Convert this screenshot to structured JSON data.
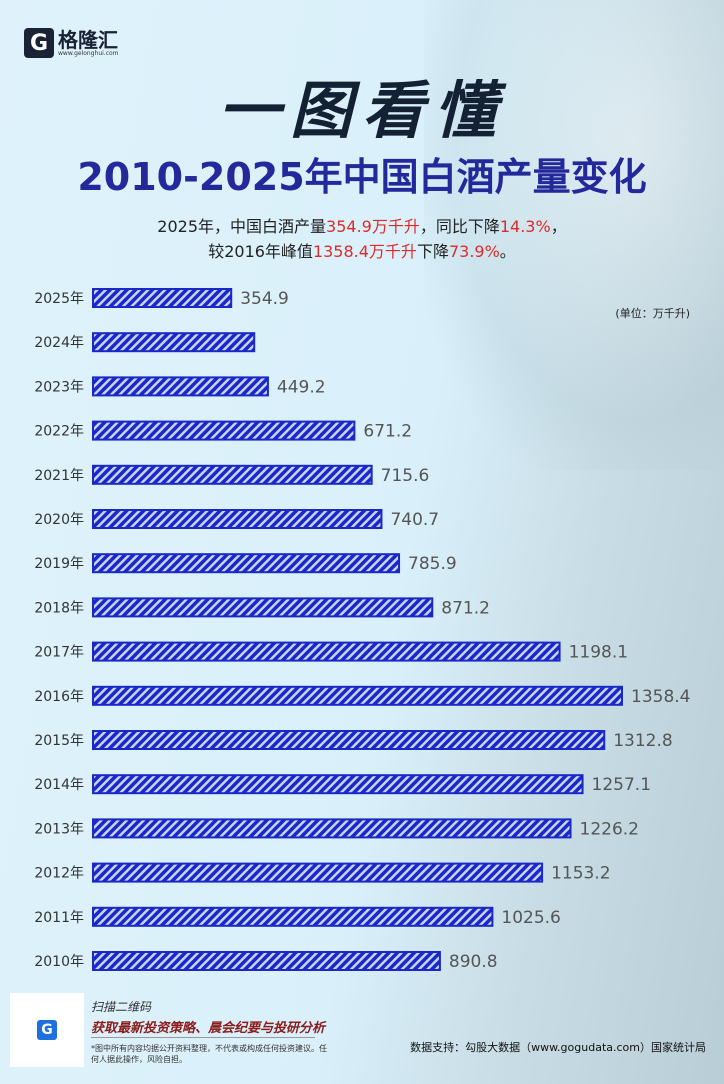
{
  "logo": {
    "name": "格隆汇",
    "url": "www.gelonghui.com"
  },
  "header": {
    "big_title": "一图看懂",
    "title": "2010-2025年中国白酒产量变化",
    "line1": [
      "2025年，中国白酒产量",
      "354.9万千升",
      "，同比下降",
      "14.3%",
      "，"
    ],
    "line2": [
      "较2016年峰值",
      "1358.4万千升",
      "下降",
      "73.9%",
      "。"
    ]
  },
  "colors": {
    "bar_fill": "#1a28c8",
    "bar_stripe": "#ffffff",
    "highlight": "#e02a2a",
    "title": "#23289a"
  },
  "chart_data": {
    "type": "bar",
    "orientation": "horizontal",
    "unit": "(单位：万千升)",
    "categories": [
      "2025年",
      "2024年",
      "2023年",
      "2022年",
      "2021年",
      "2020年",
      "2019年",
      "2018年",
      "2017年",
      "2016年",
      "2015年",
      "2014年",
      "2013年",
      "2012年",
      "2011年",
      "2010年"
    ],
    "values": [
      354.9,
      414,
      449.2,
      671.2,
      715.6,
      740.7,
      785.9,
      871.2,
      1198.1,
      1358.4,
      1312.8,
      1257.1,
      1226.2,
      1153.2,
      1025.6,
      890.8
    ],
    "labels": [
      "354.9",
      "",
      "449.2",
      "671.2",
      "715.6",
      "740.7",
      "785.9",
      "871.2",
      "1198.1",
      "1358.4",
      "1312.8",
      "1257.1",
      "1226.2",
      "1153.2",
      "1025.6",
      "890.8"
    ],
    "xlim": [
      0,
      1358.4
    ],
    "grid": false,
    "legend": "none"
  },
  "footer": {
    "scan": "扫描二维码",
    "promo": "获取最新投资策略、晨会纪要与投研分析",
    "disclaimer": "*图中所有内容均据公开资料整理，不代表或构成任何投资建议。任何人据此操作，风险自担。",
    "source": "数据支持：勾股大数据（www.gogudata.com）国家统计局"
  }
}
